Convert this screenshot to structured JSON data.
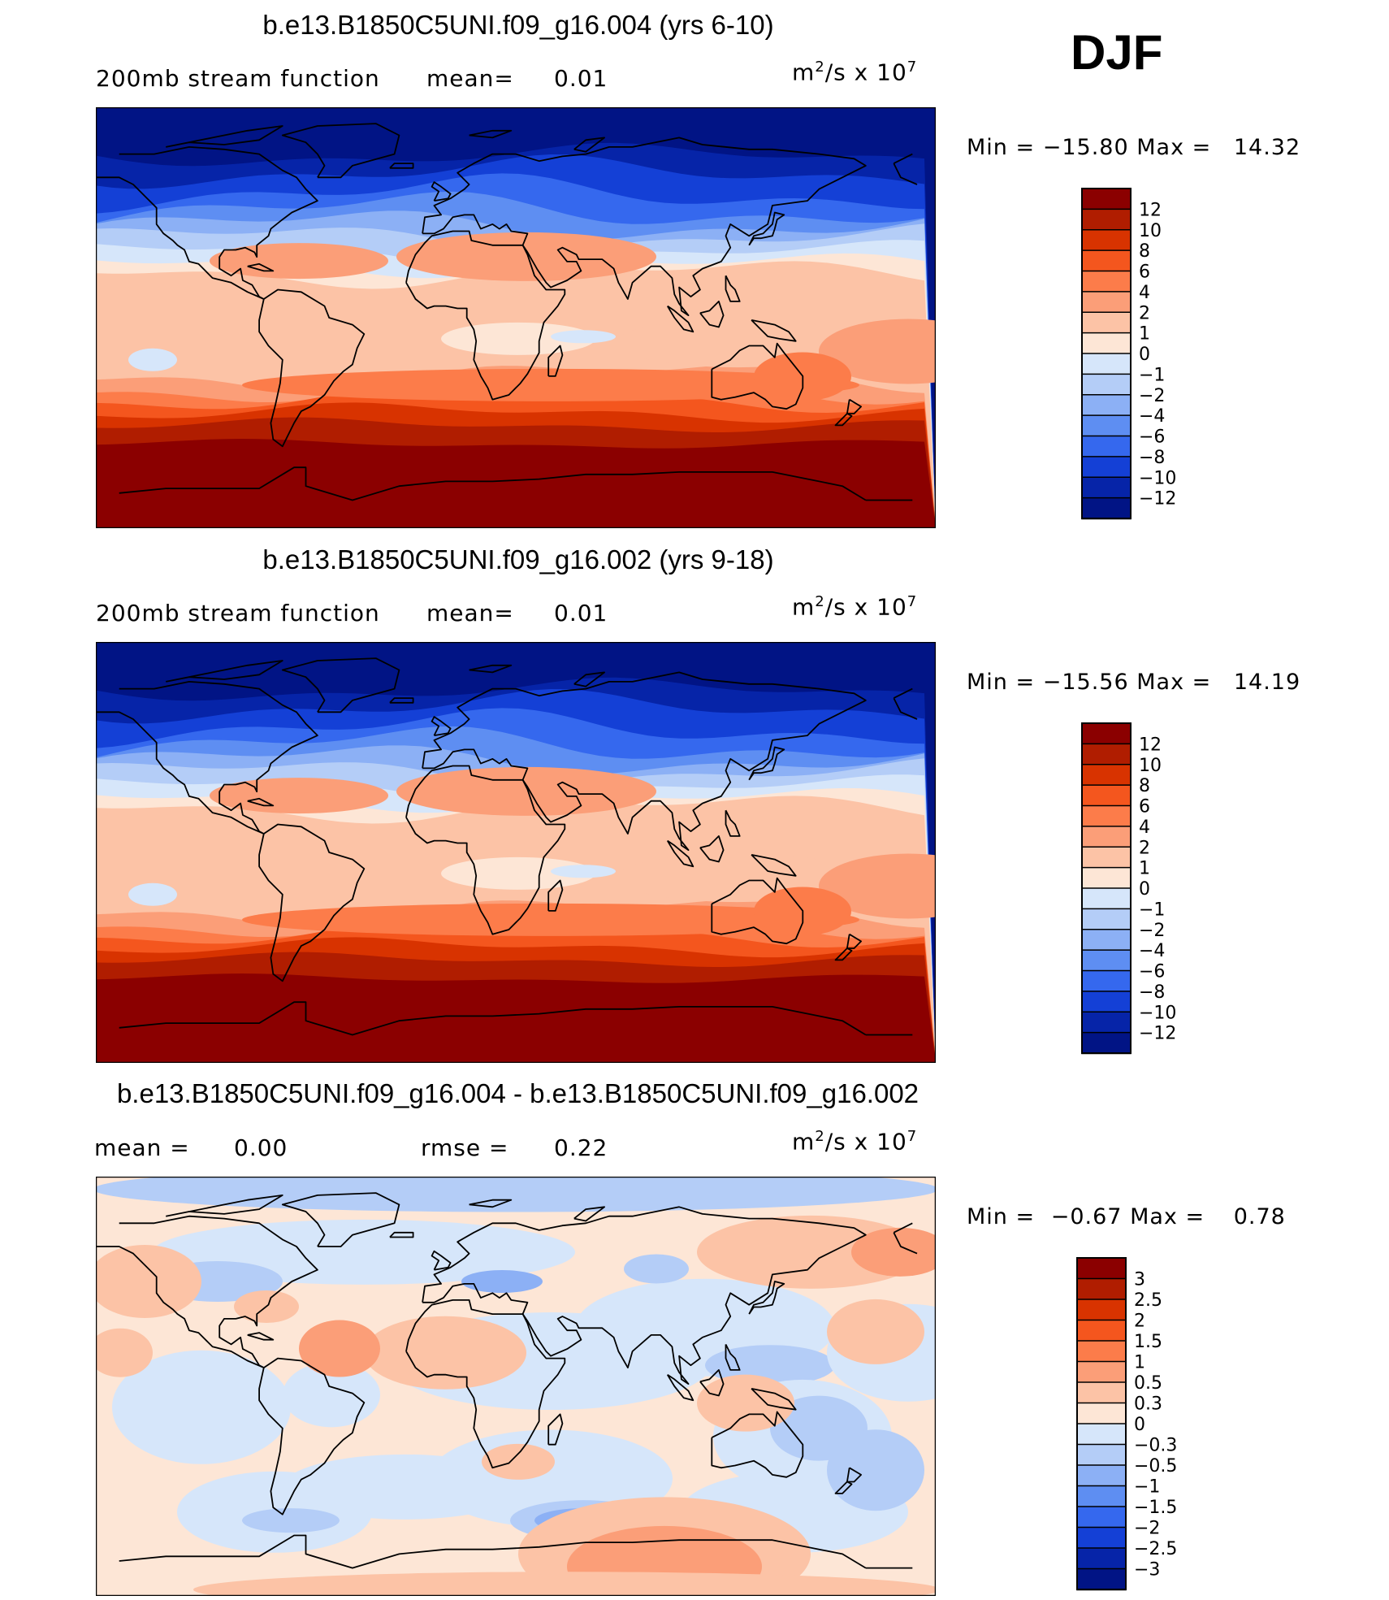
{
  "season": "DJF",
  "panels": [
    {
      "title": "b.e13.B1850C5UNI.f09_g16.004 (yrs 6-10)",
      "subtitle": "200mb stream function",
      "stat1_label": "mean=",
      "stat1_value": "0.01",
      "units_base": "m",
      "units_exp": "2",
      "units_mid": "/s x 10",
      "units_exp2": "7",
      "min_label": "Min =",
      "min_value": "−15.80",
      "max_label": "Max =",
      "max_value": "14.32"
    },
    {
      "title": "b.e13.B1850C5UNI.f09_g16.002 (yrs 9-18)",
      "subtitle": "200mb stream function",
      "stat1_label": "mean=",
      "stat1_value": "0.01",
      "units_base": "m",
      "units_exp": "2",
      "units_mid": "/s x 10",
      "units_exp2": "7",
      "min_label": "Min =",
      "min_value": "−15.56",
      "max_label": "Max =",
      "max_value": "14.19"
    },
    {
      "title": "b.e13.B1850C5UNI.f09_g16.004 - b.e13.B1850C5UNI.f09_g16.002",
      "stat1_label": "mean =",
      "stat1_value": "0.00",
      "stat2_label": "rmse =",
      "stat2_value": "0.22",
      "units_base": "m",
      "units_exp": "2",
      "units_mid": "/s x 10",
      "units_exp2": "7",
      "min_label": "Min =",
      "min_value": "−0.67",
      "max_label": "Max =",
      "max_value": "0.78"
    }
  ],
  "chart_data": [
    {
      "type": "heatmap",
      "title": "b.e13.B1850C5UNI.f09_g16.004 (yrs 6-10)",
      "variable": "200mb stream function",
      "units": "m^2/s x 10^7",
      "mean": 0.01,
      "min": -15.8,
      "max": 14.32,
      "levels": [
        -12,
        -10,
        -8,
        -6,
        -4,
        -2,
        -1,
        0,
        1,
        2,
        4,
        6,
        8,
        10,
        12
      ],
      "level_labels": [
        "12",
        "10",
        "8",
        "6",
        "4",
        "2",
        "1",
        "0",
        "−1",
        "−2",
        "−4",
        "−6",
        "−8",
        "−10",
        "−12"
      ],
      "colors": [
        "#8b0000",
        "#b01d00",
        "#d83300",
        "#f4561e",
        "#fc7c4a",
        "#fb9e78",
        "#fcc3a6",
        "#fde6d6",
        "#d6e6fa",
        "#b4cdf7",
        "#8cb0f5",
        "#5e8ef2",
        "#3568ee",
        "#1440d6",
        "#0624a8",
        "#011485"
      ]
    },
    {
      "type": "heatmap",
      "title": "b.e13.B1850C5UNI.f09_g16.002 (yrs 9-18)",
      "variable": "200mb stream function",
      "units": "m^2/s x 10^7",
      "mean": 0.01,
      "min": -15.56,
      "max": 14.19,
      "levels": [
        -12,
        -10,
        -8,
        -6,
        -4,
        -2,
        -1,
        0,
        1,
        2,
        4,
        6,
        8,
        10,
        12
      ],
      "level_labels": [
        "12",
        "10",
        "8",
        "6",
        "4",
        "2",
        "1",
        "0",
        "−1",
        "−2",
        "−4",
        "−6",
        "−8",
        "−10",
        "−12"
      ],
      "colors": [
        "#8b0000",
        "#b01d00",
        "#d83300",
        "#f4561e",
        "#fc7c4a",
        "#fb9e78",
        "#fcc3a6",
        "#fde6d6",
        "#d6e6fa",
        "#b4cdf7",
        "#8cb0f5",
        "#5e8ef2",
        "#3568ee",
        "#1440d6",
        "#0624a8",
        "#011485"
      ]
    },
    {
      "type": "heatmap",
      "title": "b.e13.B1850C5UNI.f09_g16.004 - b.e13.B1850C5UNI.f09_g16.002",
      "units": "m^2/s x 10^7",
      "mean": 0.0,
      "rmse": 0.22,
      "min": -0.67,
      "max": 0.78,
      "levels": [
        -3,
        -2.5,
        -2,
        -1.5,
        -1,
        -0.5,
        -0.3,
        0,
        0.3,
        0.5,
        1,
        1.5,
        2,
        2.5,
        3
      ],
      "level_labels": [
        "3",
        "2.5",
        "2",
        "1.5",
        "1",
        "0.5",
        "0.3",
        "0",
        "−0.3",
        "−0.5",
        "−1",
        "−1.5",
        "−2",
        "−2.5",
        "−3"
      ],
      "colors": [
        "#8b0000",
        "#b01d00",
        "#d83300",
        "#f4561e",
        "#fc7c4a",
        "#fb9e78",
        "#fcc3a6",
        "#fde6d6",
        "#d6e6fa",
        "#b4cdf7",
        "#8cb0f5",
        "#5e8ef2",
        "#3568ee",
        "#1440d6",
        "#0624a8",
        "#011485"
      ]
    }
  ]
}
